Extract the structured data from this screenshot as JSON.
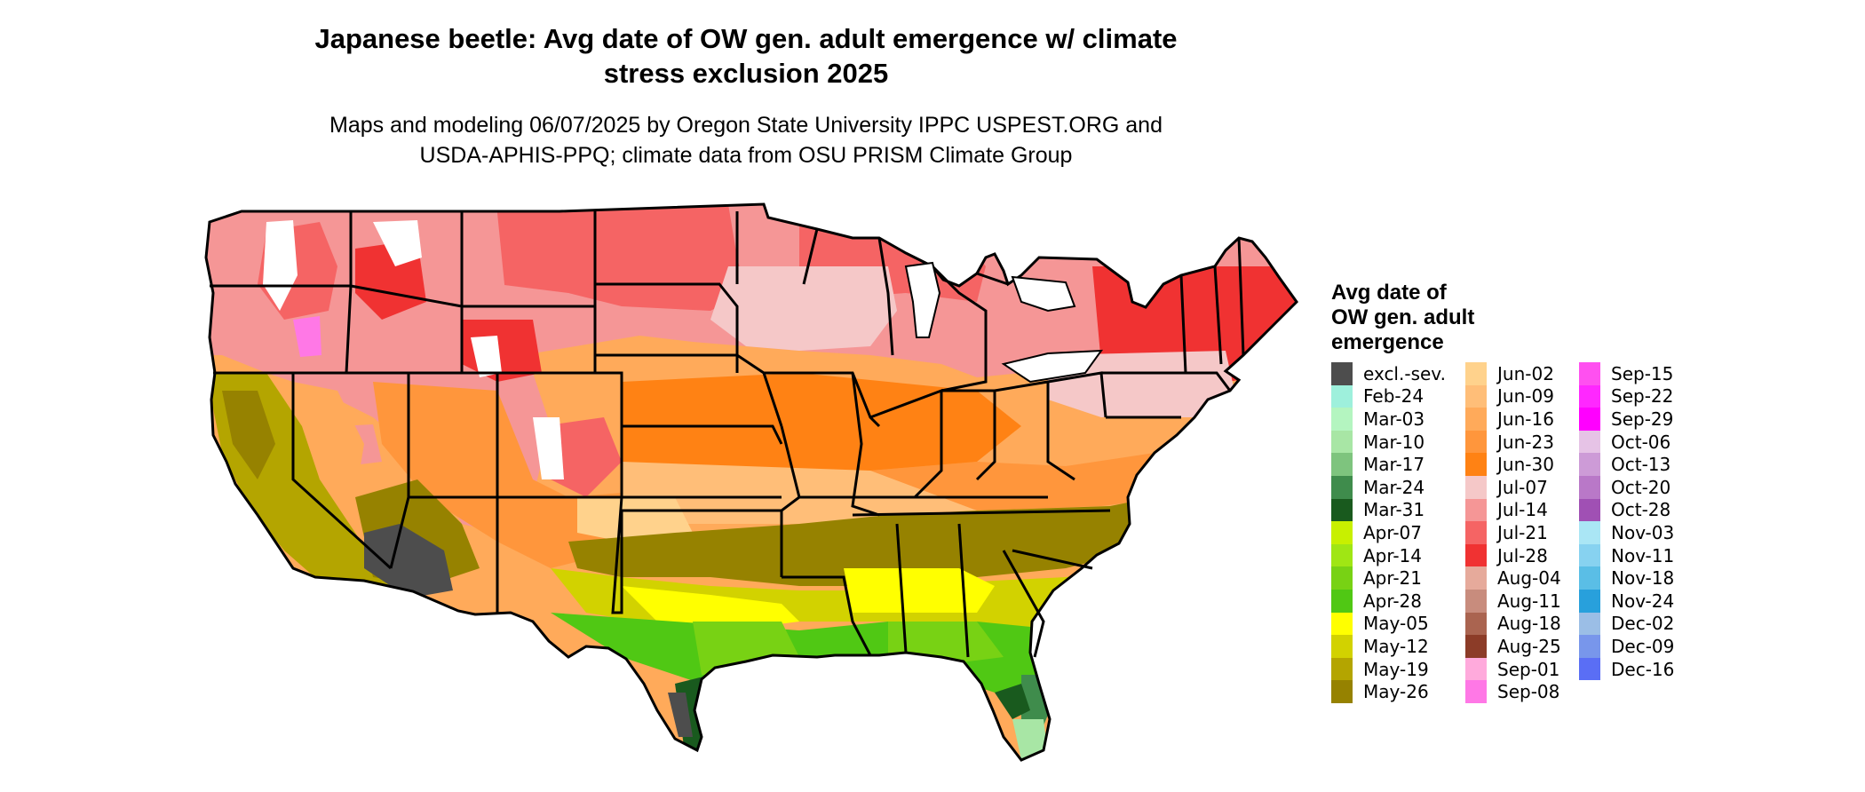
{
  "title_line1": "Japanese beetle: Avg date of OW gen. adult emergence w/ climate",
  "title_line2": "stress exclusion 2025",
  "subtitle_line1": "Maps and modeling 06/07/2025 by Oregon State University IPPC USPEST.ORG and",
  "subtitle_line2": "USDA-APHIS-PPQ; climate data from OSU PRISM Climate Group",
  "legend": {
    "title_line1": "Avg date of",
    "title_line2": "OW gen. adult",
    "title_line3": "emergence",
    "columns": [
      [
        {
          "label": "excl.-sev.",
          "color": "#4d4d4d"
        },
        {
          "label": "Feb-24",
          "color": "#9ef0dc"
        },
        {
          "label": "Mar-03",
          "color": "#b4f5c0"
        },
        {
          "label": "Mar-10",
          "color": "#a8e6a5"
        },
        {
          "label": "Mar-17",
          "color": "#7ec47e"
        },
        {
          "label": "Mar-24",
          "color": "#3f8c4c"
        },
        {
          "label": "Mar-31",
          "color": "#195a1e"
        },
        {
          "label": "Apr-07",
          "color": "#c8f000"
        },
        {
          "label": "Apr-14",
          "color": "#a0e614"
        },
        {
          "label": "Apr-21",
          "color": "#78d214"
        },
        {
          "label": "Apr-28",
          "color": "#50c814"
        },
        {
          "label": "May-05",
          "color": "#ffff00"
        },
        {
          "label": "May-12",
          "color": "#d2d200"
        },
        {
          "label": "May-19",
          "color": "#b4a500"
        },
        {
          "label": "May-26",
          "color": "#968200"
        }
      ],
      [
        {
          "label": "Jun-02",
          "color": "#ffd28c"
        },
        {
          "label": "Jun-09",
          "color": "#ffbe78"
        },
        {
          "label": "Jun-16",
          "color": "#ffaa5a"
        },
        {
          "label": "Jun-23",
          "color": "#ff963c"
        },
        {
          "label": "Jun-30",
          "color": "#ff8214"
        },
        {
          "label": "Jul-07",
          "color": "#f5c8c8"
        },
        {
          "label": "Jul-14",
          "color": "#f59696"
        },
        {
          "label": "Jul-21",
          "color": "#f56464"
        },
        {
          "label": "Jul-28",
          "color": "#f03232"
        },
        {
          "label": "Aug-04",
          "color": "#e6aa9b"
        },
        {
          "label": "Aug-11",
          "color": "#c88c7d"
        },
        {
          "label": "Aug-18",
          "color": "#aa6450"
        },
        {
          "label": "Aug-25",
          "color": "#8c3c28"
        },
        {
          "label": "Sep-01",
          "color": "#ffaadc"
        },
        {
          "label": "Sep-08",
          "color": "#ff78e6"
        }
      ],
      [
        {
          "label": "Sep-15",
          "color": "#ff50f0"
        },
        {
          "label": "Sep-22",
          "color": "#ff28ff"
        },
        {
          "label": "Sep-29",
          "color": "#ff00ff"
        },
        {
          "label": "Oct-06",
          "color": "#e6c3e6"
        },
        {
          "label": "Oct-13",
          "color": "#cd9bd7"
        },
        {
          "label": "Oct-20",
          "color": "#b978c8"
        },
        {
          "label": "Oct-28",
          "color": "#a050b4"
        },
        {
          "label": "Nov-03",
          "color": "#aae6f5"
        },
        {
          "label": "Nov-11",
          "color": "#87d2f0"
        },
        {
          "label": "Nov-18",
          "color": "#5abee6"
        },
        {
          "label": "Nov-24",
          "color": "#28a0dc"
        },
        {
          "label": "Dec-02",
          "color": "#9bbee6"
        },
        {
          "label": "Dec-09",
          "color": "#7896eb"
        },
        {
          "label": "Dec-16",
          "color": "#5a6ef5"
        }
      ]
    ]
  }
}
